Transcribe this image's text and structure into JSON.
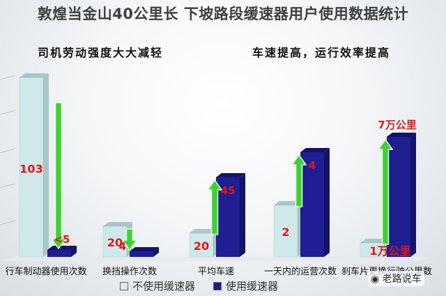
{
  "title": "敦煌当金山40公里长 下坡路段缓速器用户使用数据统计",
  "slogans": {
    "left": "司机劳动强度大大减轻",
    "right": "车速提高，运行效率提高"
  },
  "chart_data": {
    "type": "bar",
    "categories": [
      "行车制动器使用次数",
      "换挡操作次数",
      "平均车速",
      "一天内的运营次数",
      "刹车片更换行驶公里数"
    ],
    "series": [
      {
        "name": "不使用缓速器",
        "values": [
          103,
          20,
          20,
          2,
          1
        ],
        "labels": [
          "103",
          "20",
          "20",
          "2",
          "1万公里"
        ],
        "color": "#cfe8ea"
      },
      {
        "name": "使用缓速器",
        "values": [
          5,
          4,
          45,
          4,
          7
        ],
        "labels": [
          "<5",
          "4",
          "45",
          "4",
          "7万公里"
        ],
        "color": "#1c1c8c"
      }
    ],
    "arrows": [
      "down",
      "down",
      "up",
      "up",
      "up"
    ],
    "grid": true
  },
  "legend": {
    "items": [
      "不使用缓速器",
      "使用缓速器"
    ]
  },
  "watermark": "老路说车"
}
